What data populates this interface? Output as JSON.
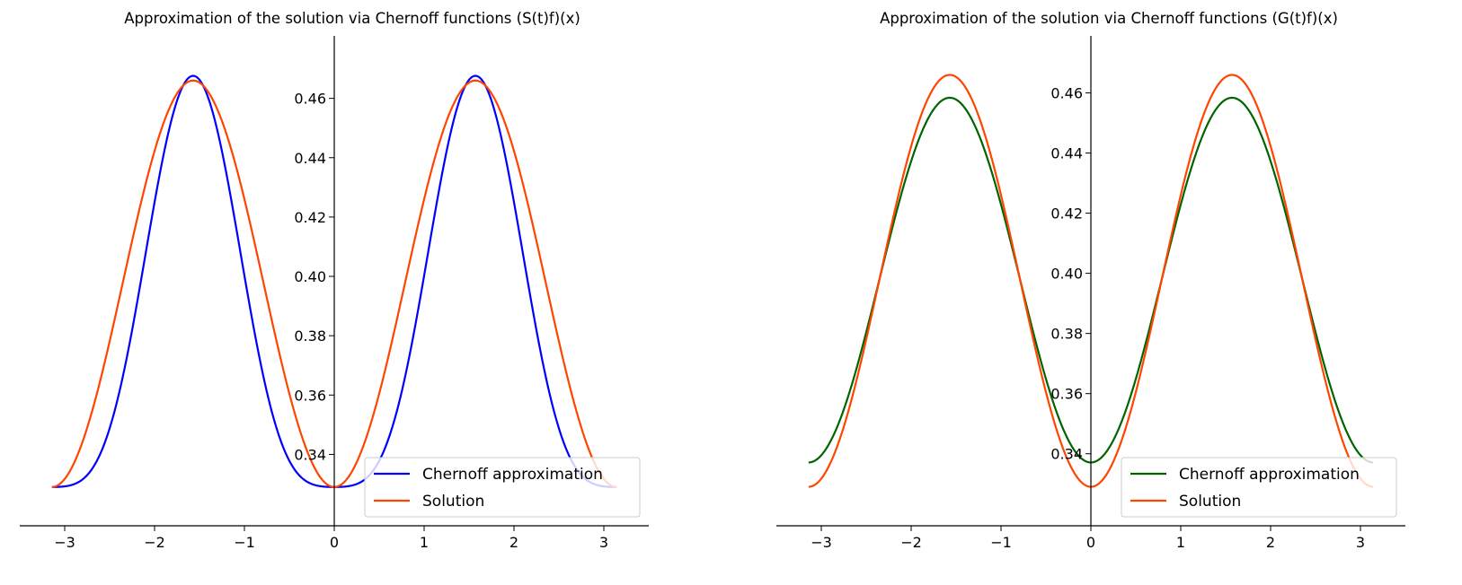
{
  "chart_data": [
    {
      "type": "line",
      "title": "Approximation of the solution via Chernoff functions (S(t)f)(x)",
      "xlabel": "",
      "ylabel": "",
      "xlim": [
        -3.5,
        3.5
      ],
      "ylim": [
        0.3232,
        0.4744
      ],
      "xticks": [
        -3,
        -2,
        -1,
        0,
        1,
        2,
        3
      ],
      "xtick_labels": [
        "−3",
        "−2",
        "−1",
        "0",
        "1",
        "2",
        "3"
      ],
      "yticks": [
        0.34,
        0.36,
        0.38,
        0.4,
        0.42,
        0.44,
        0.46
      ],
      "ytick_labels": [
        "0.34",
        "0.36",
        "0.38",
        "0.40",
        "0.42",
        "0.44",
        "0.46"
      ],
      "legend_position": "lower-right",
      "grid": false,
      "series": [
        {
          "name": "Chernoff approximation",
          "color": "#0000ff",
          "x": [
            -3.1416,
            -2.75,
            -2.36,
            -1.96,
            -1.5708,
            -1.18,
            -0.79,
            -0.39,
            0,
            0.39,
            0.79,
            1.18,
            1.5708,
            1.96,
            2.36,
            2.75,
            3.1416
          ],
          "y": [
            0.329,
            0.335,
            0.3658,
            0.4345,
            0.4676,
            0.4345,
            0.3658,
            0.335,
            0.329,
            0.335,
            0.3658,
            0.4345,
            0.4676,
            0.4345,
            0.3658,
            0.335,
            0.329
          ]
        },
        {
          "name": "Solution",
          "color": "#ff4500",
          "x": [
            -3.1416,
            -2.75,
            -2.36,
            -1.96,
            -1.5708,
            -1.18,
            -0.79,
            -0.39,
            0,
            0.39,
            0.79,
            1.18,
            1.5708,
            1.96,
            2.36,
            2.75,
            3.1416
          ],
          "y": [
            0.329,
            0.3345,
            0.3975,
            0.443,
            0.466,
            0.443,
            0.3975,
            0.3345,
            0.329,
            0.3345,
            0.3975,
            0.443,
            0.466,
            0.443,
            0.3975,
            0.3345,
            0.329
          ]
        }
      ]
    },
    {
      "type": "line",
      "title": "Approximation of the solution via Chernoff functions (G(t)f)(x)",
      "xlabel": "",
      "ylabel": "",
      "xlim": [
        -3.5,
        3.5
      ],
      "ylim": [
        0.3232,
        0.4724
      ],
      "xticks": [
        -3,
        -2,
        -1,
        0,
        1,
        2,
        3
      ],
      "xtick_labels": [
        "−3",
        "−2",
        "−1",
        "0",
        "1",
        "2",
        "3"
      ],
      "yticks": [
        0.34,
        0.36,
        0.38,
        0.4,
        0.42,
        0.44,
        0.46
      ],
      "ytick_labels": [
        "0.34",
        "0.36",
        "0.38",
        "0.40",
        "0.42",
        "0.44",
        "0.46"
      ],
      "legend_position": "lower-right",
      "grid": false,
      "series": [
        {
          "name": "Chernoff approximation",
          "color": "#006400",
          "x": [
            -3.1416,
            -2.75,
            -2.36,
            -1.96,
            -1.5708,
            -1.18,
            -0.79,
            -0.39,
            0,
            0.39,
            0.79,
            1.18,
            1.5708,
            1.96,
            2.36,
            2.75,
            3.1416
          ],
          "y": [
            0.3371,
            0.3424,
            0.3976,
            0.4406,
            0.4584,
            0.4406,
            0.3976,
            0.3424,
            0.3371,
            0.3424,
            0.3976,
            0.4406,
            0.4584,
            0.4406,
            0.3976,
            0.3424,
            0.3371
          ]
        },
        {
          "name": "Solution",
          "color": "#ff4500",
          "x": [
            -3.1416,
            -2.75,
            -2.36,
            -1.96,
            -1.5708,
            -1.18,
            -0.79,
            -0.39,
            0,
            0.39,
            0.79,
            1.18,
            1.5708,
            1.96,
            2.36,
            2.75,
            3.1416
          ],
          "y": [
            0.329,
            0.3345,
            0.3975,
            0.443,
            0.466,
            0.443,
            0.3975,
            0.3345,
            0.329,
            0.3345,
            0.3975,
            0.443,
            0.466,
            0.443,
            0.3975,
            0.3345,
            0.329
          ]
        }
      ]
    }
  ]
}
